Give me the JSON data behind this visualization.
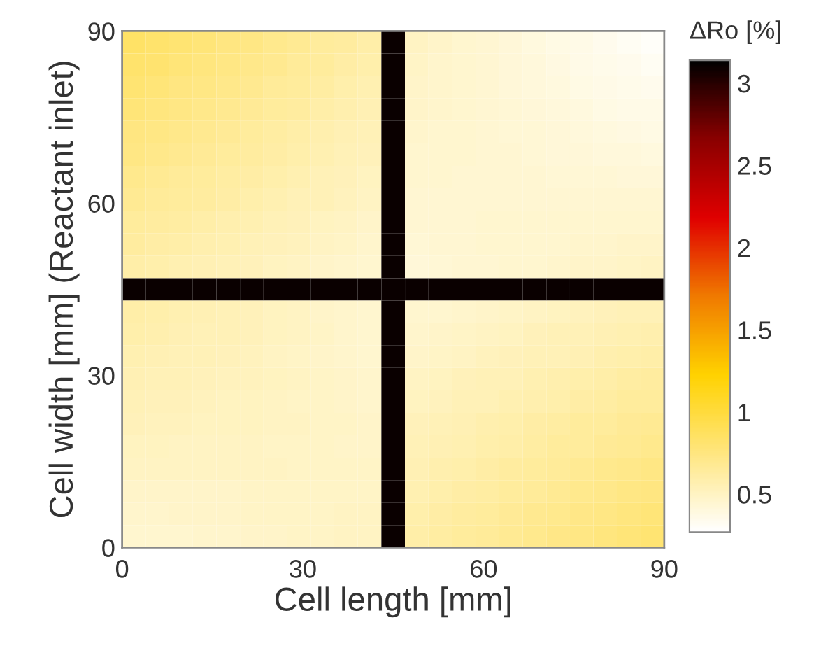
{
  "chart_data": {
    "type": "heatmap",
    "xlabel": "Cell length [mm]",
    "ylabel": "Cell width [mm] (Reactant inlet)",
    "clabel": "ΔRo [%]",
    "x": [
      1.96,
      5.87,
      9.78,
      13.7,
      17.61,
      21.52,
      25.43,
      29.35,
      33.26,
      37.17,
      41.09,
      45.0,
      48.91,
      52.83,
      56.74,
      60.65,
      64.57,
      68.48,
      72.39,
      76.3,
      80.22,
      84.13,
      88.04
    ],
    "y": [
      88.04,
      84.13,
      80.22,
      76.3,
      72.39,
      68.48,
      64.57,
      60.65,
      56.74,
      52.83,
      48.91,
      45.0,
      41.09,
      37.17,
      33.26,
      29.35,
      25.43,
      21.52,
      17.61,
      13.7,
      9.78,
      5.87,
      1.96
    ],
    "xlim": [
      0,
      90
    ],
    "xticks": [
      0,
      30,
      60,
      90
    ],
    "ylim": [
      0,
      90
    ],
    "yticks": [
      0,
      30,
      60,
      90
    ],
    "clim": [
      0.27,
      3.14
    ],
    "cticks": [
      0.5,
      1,
      1.5,
      2,
      2.5,
      3
    ],
    "cells": [
      [
        0.85,
        0.83,
        0.8,
        0.78,
        0.75,
        0.73,
        0.7,
        0.68,
        0.65,
        0.63,
        0.6,
        3.1,
        0.5,
        0.48,
        0.46,
        0.44,
        0.42,
        0.4,
        0.38,
        0.36,
        0.34,
        0.32,
        0.3
      ],
      [
        0.83,
        0.81,
        0.78,
        0.76,
        0.73,
        0.71,
        0.69,
        0.66,
        0.64,
        0.61,
        0.59,
        3.1,
        0.49,
        0.47,
        0.46,
        0.44,
        0.42,
        0.41,
        0.39,
        0.37,
        0.35,
        0.34,
        0.32
      ],
      [
        0.8,
        0.78,
        0.75,
        0.73,
        0.71,
        0.69,
        0.66,
        0.64,
        0.62,
        0.59,
        0.57,
        3.1,
        0.48,
        0.47,
        0.45,
        0.44,
        0.42,
        0.41,
        0.4,
        0.38,
        0.37,
        0.35,
        0.34
      ],
      [
        0.78,
        0.76,
        0.73,
        0.71,
        0.69,
        0.67,
        0.65,
        0.63,
        0.6,
        0.58,
        0.56,
        3.1,
        0.48,
        0.47,
        0.46,
        0.44,
        0.43,
        0.42,
        0.41,
        0.4,
        0.38,
        0.37,
        0.36
      ],
      [
        0.75,
        0.73,
        0.71,
        0.69,
        0.67,
        0.65,
        0.62,
        0.6,
        0.58,
        0.56,
        0.54,
        3.1,
        0.47,
        0.46,
        0.45,
        0.44,
        0.43,
        0.43,
        0.42,
        0.41,
        0.4,
        0.39,
        0.38
      ],
      [
        0.73,
        0.71,
        0.69,
        0.67,
        0.65,
        0.63,
        0.61,
        0.59,
        0.57,
        0.55,
        0.53,
        3.1,
        0.46,
        0.45,
        0.45,
        0.44,
        0.44,
        0.43,
        0.42,
        0.42,
        0.41,
        0.41,
        0.4
      ],
      [
        0.7,
        0.68,
        0.66,
        0.64,
        0.62,
        0.61,
        0.59,
        0.57,
        0.55,
        0.53,
        0.51,
        3.1,
        0.45,
        0.45,
        0.44,
        0.44,
        0.44,
        0.44,
        0.43,
        0.43,
        0.43,
        0.42,
        0.42
      ],
      [
        0.68,
        0.66,
        0.64,
        0.63,
        0.61,
        0.59,
        0.57,
        0.55,
        0.54,
        0.52,
        0.5,
        3.1,
        0.44,
        0.44,
        0.44,
        0.44,
        0.44,
        0.44,
        0.44,
        0.44,
        0.44,
        0.44,
        0.44
      ],
      [
        0.65,
        0.63,
        0.62,
        0.6,
        0.58,
        0.57,
        0.55,
        0.53,
        0.51,
        0.5,
        0.48,
        3.1,
        0.44,
        0.44,
        0.44,
        0.45,
        0.45,
        0.45,
        0.45,
        0.45,
        0.46,
        0.46,
        0.46
      ],
      [
        0.63,
        0.61,
        0.6,
        0.58,
        0.57,
        0.55,
        0.53,
        0.52,
        0.5,
        0.49,
        0.47,
        3.1,
        0.43,
        0.44,
        0.44,
        0.45,
        0.45,
        0.46,
        0.46,
        0.47,
        0.47,
        0.48,
        0.48
      ],
      [
        0.6,
        0.59,
        0.57,
        0.56,
        0.54,
        0.53,
        0.51,
        0.5,
        0.48,
        0.47,
        0.45,
        3.1,
        0.42,
        0.43,
        0.44,
        0.44,
        0.45,
        0.46,
        0.47,
        0.48,
        0.48,
        0.49,
        0.5
      ],
      [
        3.1,
        3.1,
        3.1,
        3.1,
        3.1,
        3.1,
        3.1,
        3.1,
        3.1,
        3.1,
        3.1,
        3.1,
        3.1,
        3.1,
        3.1,
        3.1,
        3.1,
        3.1,
        3.1,
        3.1,
        3.1,
        3.1,
        3.1
      ],
      [
        0.6,
        0.59,
        0.57,
        0.56,
        0.54,
        0.53,
        0.51,
        0.5,
        0.48,
        0.47,
        0.45,
        3.1,
        0.45,
        0.46,
        0.47,
        0.48,
        0.49,
        0.5,
        0.51,
        0.52,
        0.53,
        0.54,
        0.55
      ],
      [
        0.59,
        0.58,
        0.56,
        0.55,
        0.54,
        0.53,
        0.51,
        0.5,
        0.49,
        0.47,
        0.46,
        3.1,
        0.47,
        0.48,
        0.49,
        0.5,
        0.51,
        0.53,
        0.54,
        0.55,
        0.56,
        0.57,
        0.58
      ],
      [
        0.57,
        0.56,
        0.55,
        0.54,
        0.53,
        0.52,
        0.5,
        0.49,
        0.48,
        0.47,
        0.46,
        3.1,
        0.48,
        0.49,
        0.5,
        0.52,
        0.53,
        0.54,
        0.55,
        0.56,
        0.58,
        0.59,
        0.6
      ],
      [
        0.56,
        0.55,
        0.54,
        0.53,
        0.52,
        0.52,
        0.51,
        0.5,
        0.49,
        0.48,
        0.47,
        3.1,
        0.5,
        0.51,
        0.53,
        0.54,
        0.55,
        0.57,
        0.58,
        0.59,
        0.6,
        0.62,
        0.63
      ],
      [
        0.54,
        0.53,
        0.53,
        0.52,
        0.51,
        0.51,
        0.5,
        0.49,
        0.49,
        0.48,
        0.47,
        3.1,
        0.51,
        0.52,
        0.54,
        0.55,
        0.57,
        0.58,
        0.59,
        0.61,
        0.62,
        0.64,
        0.65
      ],
      [
        0.53,
        0.52,
        0.52,
        0.51,
        0.51,
        0.51,
        0.5,
        0.5,
        0.49,
        0.49,
        0.48,
        3.1,
        0.53,
        0.55,
        0.56,
        0.58,
        0.59,
        0.61,
        0.62,
        0.64,
        0.65,
        0.67,
        0.68
      ],
      [
        0.51,
        0.51,
        0.5,
        0.5,
        0.5,
        0.5,
        0.49,
        0.49,
        0.49,
        0.48,
        0.48,
        3.1,
        0.54,
        0.56,
        0.57,
        0.59,
        0.6,
        0.62,
        0.64,
        0.65,
        0.67,
        0.68,
        0.7
      ],
      [
        0.5,
        0.5,
        0.5,
        0.5,
        0.5,
        0.5,
        0.5,
        0.49,
        0.49,
        0.49,
        0.49,
        3.1,
        0.56,
        0.58,
        0.59,
        0.61,
        0.63,
        0.65,
        0.66,
        0.68,
        0.7,
        0.71,
        0.73
      ],
      [
        0.48,
        0.48,
        0.48,
        0.48,
        0.48,
        0.49,
        0.49,
        0.49,
        0.49,
        0.49,
        0.49,
        3.1,
        0.57,
        0.59,
        0.61,
        0.62,
        0.64,
        0.66,
        0.68,
        0.7,
        0.71,
        0.73,
        0.75
      ],
      [
        0.47,
        0.47,
        0.48,
        0.48,
        0.48,
        0.49,
        0.49,
        0.49,
        0.49,
        0.5,
        0.5,
        3.1,
        0.59,
        0.61,
        0.63,
        0.65,
        0.67,
        0.69,
        0.7,
        0.72,
        0.74,
        0.76,
        0.78
      ],
      [
        0.45,
        0.46,
        0.46,
        0.47,
        0.47,
        0.48,
        0.48,
        0.49,
        0.49,
        0.5,
        0.5,
        3.1,
        0.6,
        0.62,
        0.64,
        0.66,
        0.68,
        0.7,
        0.72,
        0.74,
        0.76,
        0.78,
        0.8
      ]
    ]
  }
}
